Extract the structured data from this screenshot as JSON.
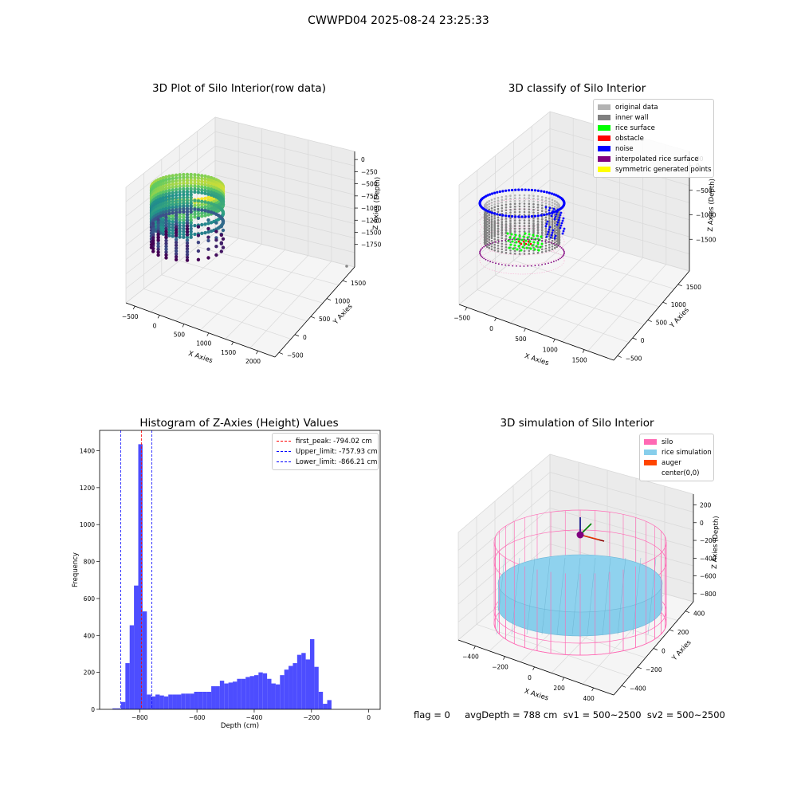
{
  "title": "CWWPD04 2025-08-24 23:25:33",
  "colors": {
    "original_data": "#b3b3b3",
    "inner_wall": "#808080",
    "rice_surface": "#00ff00",
    "obstacle": "#ff0000",
    "noise": "#0000ff",
    "interpolated_rice_surface": "#800080",
    "symmetric_generated_points": "#ffff00",
    "histogram_bar": "#4d4dff",
    "silo": "#ff69b4",
    "rice_simulation": "#87ceeb",
    "auger": "#ff4500"
  },
  "chart_data": [
    {
      "type": "scatter3d",
      "title": "3D Plot of Silo Interior(row data)",
      "xlabel": "X Axies",
      "ylabel": "Y Axies",
      "zlabel": "Z Axies (Depth)",
      "x_ticks": [
        "−500",
        "0",
        "500",
        "1000",
        "1500",
        "2000"
      ],
      "y_ticks": [
        "−500",
        "0",
        "500",
        "1000",
        "1500"
      ],
      "z_ticks": [
        "0",
        "−250",
        "−500",
        "−750",
        "−1000",
        "−1250",
        "−1500",
        "−1750"
      ],
      "xlim": [
        -500,
        2000
      ],
      "ylim": [
        -500,
        1500
      ],
      "zlim": [
        -1800,
        0
      ]
    },
    {
      "type": "scatter3d",
      "title": "3D classify of Silo Interior",
      "xlabel": "X Axies",
      "ylabel": "Y Axies",
      "zlabel": "Z Axies (Depth)",
      "x_ticks": [
        "−500",
        "0",
        "500",
        "1000",
        "1500"
      ],
      "y_ticks": [
        "−500",
        "0",
        "500",
        "1000",
        "1500"
      ],
      "z_ticks": [
        "0",
        "−500",
        "−1000",
        "−1500"
      ],
      "z_top_partial": "00",
      "legend": [
        {
          "label": "original data",
          "color": "#b3b3b3"
        },
        {
          "label": "inner wall",
          "color": "#808080"
        },
        {
          "label": "rice surface",
          "color": "#00ff00"
        },
        {
          "label": "obstacle",
          "color": "#ff0000"
        },
        {
          "label": "noise",
          "color": "#0000ff"
        },
        {
          "label": "interpolated rice surface",
          "color": "#800080"
        },
        {
          "label": "symmetric generated points",
          "color": "#ffff00"
        }
      ],
      "legend_position": "top-right"
    },
    {
      "type": "bar",
      "title": "Histogram of Z-Axies (Height) Values",
      "xlabel": "Depth (cm)",
      "ylabel": "Frequency",
      "x_ticks": [
        -800,
        -600,
        -400,
        -200,
        0
      ],
      "x_tick_labels": [
        "−800",
        "−600",
        "−400",
        "−200",
        "0"
      ],
      "y_ticks": [
        0,
        200,
        400,
        600,
        800,
        1000,
        1200,
        1400
      ],
      "xlim": [
        -940,
        40
      ],
      "ylim": [
        0,
        1510
      ],
      "bin_width": 15,
      "bin_start": -895,
      "values": [
        5,
        5,
        40,
        250,
        455,
        670,
        1435,
        530,
        80,
        70,
        80,
        75,
        70,
        80,
        80,
        80,
        85,
        85,
        85,
        95,
        95,
        95,
        95,
        125,
        125,
        155,
        140,
        145,
        150,
        165,
        165,
        175,
        180,
        185,
        200,
        195,
        165,
        140,
        135,
        185,
        215,
        235,
        250,
        295,
        305,
        270,
        380,
        230,
        95,
        30,
        50
      ],
      "lines": [
        {
          "label": "first_peak: -794.02 cm",
          "x": -794.02,
          "color": "#ff0000"
        },
        {
          "label": "Upper_limit: -757.93 cm",
          "x": -757.93,
          "color": "#0000ff"
        },
        {
          "label": "Lower_limit: -866.21 cm",
          "x": -866.21,
          "color": "#0000ff"
        }
      ],
      "legend_position": "top-right"
    },
    {
      "type": "surface3d",
      "title": "3D simulation of Silo Interior",
      "xlabel": "X Axies",
      "ylabel": "Y Axies",
      "zlabel": "Z Axies (Depth)",
      "x_ticks": [
        "−400",
        "−200",
        "0",
        "200",
        "400"
      ],
      "y_ticks": [
        "−400",
        "−200",
        "0",
        "200",
        "400"
      ],
      "z_ticks": [
        "200",
        "0",
        "−200",
        "−400",
        "−600",
        "−800"
      ],
      "legend": [
        {
          "label": "silo",
          "color": "#ff69b4"
        },
        {
          "label": "rice simulation",
          "color": "#87ceeb"
        },
        {
          "label": "auger",
          "color": "#ff4500"
        },
        {
          "label": "center(0,0)",
          "color": ""
        }
      ],
      "legend_position": "top-right"
    }
  ],
  "status_text": "flag = 0     avgDepth = 788 cm  sv1 = 500~2500  sv2 = 500~2500"
}
